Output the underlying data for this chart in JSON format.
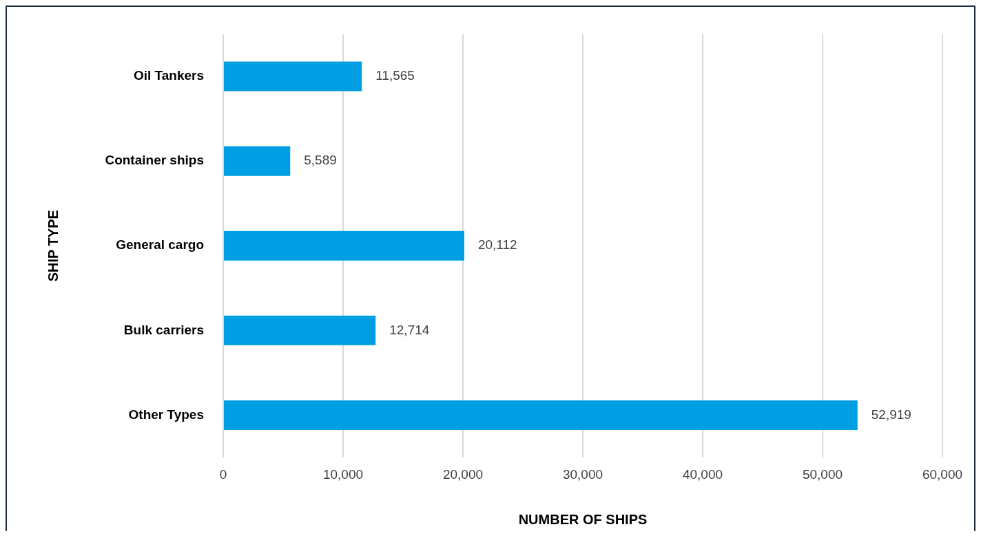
{
  "chart_data": {
    "type": "bar",
    "orientation": "horizontal",
    "xlabel": "NUMBER OF SHIPS",
    "ylabel": "SHIP TYPE",
    "categories": [
      "Oil Tankers",
      "Container ships",
      "General cargo",
      "Bulk carriers",
      "Other Types"
    ],
    "values": [
      11565,
      5589,
      20112,
      12714,
      52919
    ],
    "value_labels": [
      "11,565",
      "5,589",
      "20,112",
      "12,714",
      "52,919"
    ],
    "color": "#009fe3",
    "xlim": [
      0,
      60000
    ],
    "xticks": [
      {
        "value": 0,
        "label": "0"
      },
      {
        "value": 10000,
        "label": "10,000"
      },
      {
        "value": 20000,
        "label": "20,000"
      },
      {
        "value": 30000,
        "label": "30,000"
      },
      {
        "value": 40000,
        "label": "40,000"
      },
      {
        "value": 50000,
        "label": "50,000"
      },
      {
        "value": 60000,
        "label": "60,000"
      }
    ],
    "grid": "x",
    "legend": false
  }
}
